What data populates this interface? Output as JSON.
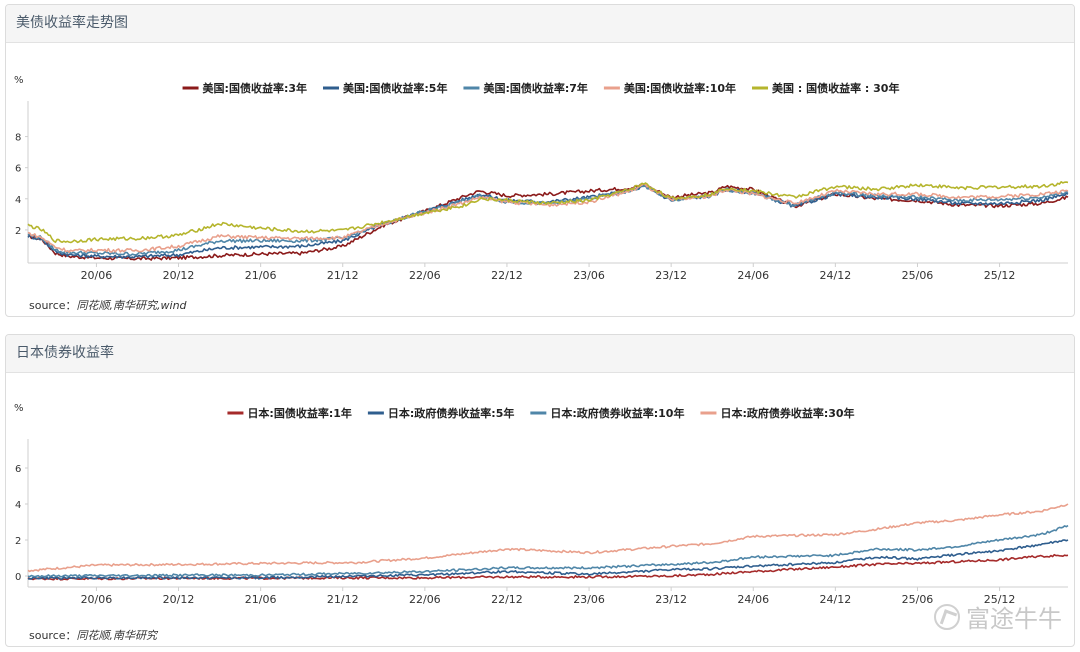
{
  "panels": [
    {
      "title": "美债收益率走势图",
      "source_label": "source：",
      "source_text": "同花顺,南华研究,wind"
    },
    {
      "title": "日本债券收益率",
      "source_label": "source：",
      "source_text": "同花顺,南华研究"
    }
  ],
  "watermark": "富途牛牛",
  "chart_data": [
    {
      "type": "line",
      "title": "",
      "ylabel": "%",
      "xlabel": "",
      "ylim": [
        0,
        9
      ],
      "yticks": [
        2,
        4,
        6,
        8
      ],
      "xlim": [
        "2020-01",
        "2026-05"
      ],
      "xticks": [
        "20/06",
        "20/12",
        "21/06",
        "21/12",
        "22/06",
        "22/12",
        "23/06",
        "23/12",
        "24/06",
        "24/12",
        "25/06",
        "25/12"
      ],
      "legend_position": "top",
      "series": [
        {
          "name": "美国:国债收益率:3年",
          "color": "#8b1a1a",
          "x": [
            "2020-01",
            "2020-02",
            "2020-03",
            "2020-04",
            "2020-06",
            "2020-09",
            "2020-12",
            "2021-03",
            "2021-06",
            "2021-09",
            "2021-12",
            "2022-03",
            "2022-06",
            "2022-09",
            "2022-10",
            "2022-12",
            "2023-03",
            "2023-06",
            "2023-09",
            "2023-10",
            "2023-12",
            "2024-03",
            "2024-04",
            "2024-06",
            "2024-09",
            "2024-12",
            "2025-03",
            "2025-06",
            "2025-09",
            "2025-12",
            "2026-03",
            "2026-05"
          ],
          "values": [
            1.6,
            1.4,
            0.5,
            0.3,
            0.2,
            0.15,
            0.2,
            0.35,
            0.45,
            0.5,
            0.95,
            2.3,
            3.2,
            4.2,
            4.5,
            4.2,
            4.3,
            4.5,
            4.7,
            4.9,
            4.1,
            4.4,
            4.8,
            4.6,
            3.5,
            4.3,
            4.0,
            3.9,
            3.6,
            3.55,
            3.7,
            4.1
          ]
        },
        {
          "name": "美国:国债收益率:5年",
          "color": "#2f5e8e",
          "x": [
            "2020-01",
            "2020-02",
            "2020-03",
            "2020-04",
            "2020-06",
            "2020-09",
            "2020-12",
            "2021-03",
            "2021-06",
            "2021-09",
            "2021-12",
            "2022-03",
            "2022-06",
            "2022-09",
            "2022-10",
            "2022-12",
            "2023-03",
            "2023-06",
            "2023-09",
            "2023-10",
            "2023-12",
            "2024-03",
            "2024-04",
            "2024-06",
            "2024-09",
            "2024-12",
            "2025-03",
            "2025-06",
            "2025-09",
            "2025-12",
            "2026-03",
            "2026-05"
          ],
          "values": [
            1.6,
            1.4,
            0.6,
            0.4,
            0.3,
            0.28,
            0.4,
            0.85,
            0.9,
            0.95,
            1.3,
            2.4,
            3.2,
            4.0,
            4.3,
            3.9,
            3.8,
            4.1,
            4.5,
            4.8,
            3.9,
            4.2,
            4.6,
            4.4,
            3.5,
            4.3,
            4.1,
            4.0,
            3.7,
            3.7,
            3.9,
            4.3
          ]
        },
        {
          "name": "美国:国债收益率:7年",
          "color": "#4f86a8",
          "x": [
            "2020-01",
            "2020-02",
            "2020-03",
            "2020-04",
            "2020-06",
            "2020-09",
            "2020-12",
            "2021-03",
            "2021-06",
            "2021-09",
            "2021-12",
            "2022-03",
            "2022-06",
            "2022-09",
            "2022-10",
            "2022-12",
            "2023-03",
            "2023-06",
            "2023-09",
            "2023-10",
            "2023-12",
            "2024-03",
            "2024-04",
            "2024-06",
            "2024-09",
            "2024-12",
            "2025-03",
            "2025-06",
            "2025-09",
            "2025-12",
            "2026-03",
            "2026-05"
          ],
          "values": [
            1.7,
            1.5,
            0.7,
            0.55,
            0.5,
            0.45,
            0.7,
            1.3,
            1.3,
            1.3,
            1.45,
            2.4,
            3.2,
            3.9,
            4.2,
            3.8,
            3.7,
            4.0,
            4.5,
            4.85,
            3.9,
            4.2,
            4.6,
            4.35,
            3.6,
            4.4,
            4.2,
            4.1,
            3.9,
            3.95,
            4.1,
            4.4
          ]
        },
        {
          "name": "美国:国债收益率:10年",
          "color": "#e9a08c",
          "x": [
            "2020-01",
            "2020-02",
            "2020-03",
            "2020-04",
            "2020-06",
            "2020-09",
            "2020-12",
            "2021-03",
            "2021-06",
            "2021-09",
            "2021-12",
            "2022-03",
            "2022-06",
            "2022-09",
            "2022-10",
            "2022-12",
            "2023-03",
            "2023-06",
            "2023-09",
            "2023-10",
            "2023-12",
            "2024-03",
            "2024-04",
            "2024-06",
            "2024-09",
            "2024-12",
            "2025-03",
            "2025-06",
            "2025-09",
            "2025-12",
            "2026-03",
            "2026-05"
          ],
          "values": [
            1.8,
            1.5,
            0.9,
            0.65,
            0.7,
            0.68,
            0.95,
            1.6,
            1.5,
            1.45,
            1.5,
            2.4,
            3.1,
            3.8,
            4.1,
            3.8,
            3.6,
            3.8,
            4.5,
            4.9,
            3.9,
            4.2,
            4.6,
            4.3,
            3.7,
            4.5,
            4.3,
            4.3,
            4.1,
            4.15,
            4.3,
            4.5
          ]
        },
        {
          "name": "美国 : 国债收益率 : 30年",
          "color": "#b5b52d",
          "x": [
            "2020-01",
            "2020-02",
            "2020-03",
            "2020-04",
            "2020-06",
            "2020-09",
            "2020-12",
            "2021-03",
            "2021-06",
            "2021-09",
            "2021-12",
            "2022-03",
            "2022-06",
            "2022-09",
            "2022-10",
            "2022-12",
            "2023-03",
            "2023-06",
            "2023-09",
            "2023-10",
            "2023-12",
            "2024-03",
            "2024-04",
            "2024-06",
            "2024-09",
            "2024-12",
            "2025-03",
            "2025-06",
            "2025-09",
            "2025-12",
            "2026-03",
            "2026-05"
          ],
          "values": [
            2.3,
            2.0,
            1.3,
            1.25,
            1.4,
            1.45,
            1.65,
            2.4,
            2.1,
            1.9,
            1.95,
            2.5,
            3.1,
            3.6,
            4.0,
            3.9,
            3.7,
            3.9,
            4.6,
            5.0,
            4.0,
            4.3,
            4.7,
            4.5,
            4.1,
            4.8,
            4.6,
            4.9,
            4.7,
            4.75,
            4.8,
            5.05
          ]
        }
      ]
    },
    {
      "type": "line",
      "title": "",
      "ylabel": "%",
      "xlabel": "",
      "ylim": [
        -0.5,
        6.5
      ],
      "yticks": [
        0,
        2,
        4,
        6
      ],
      "xlim": [
        "2020-01",
        "2026-05"
      ],
      "xticks": [
        "20/06",
        "20/12",
        "21/06",
        "21/12",
        "22/06",
        "22/12",
        "23/06",
        "23/12",
        "24/06",
        "24/12",
        "25/06",
        "25/12"
      ],
      "legend_position": "top",
      "series": [
        {
          "name": "日本:国债收益率:1年",
          "color": "#a52a2a",
          "x": [
            "2020-01",
            "2020-06",
            "2021-01",
            "2021-06",
            "2022-01",
            "2022-06",
            "2022-12",
            "2023-06",
            "2023-12",
            "2024-03",
            "2024-06",
            "2024-12",
            "2025-03",
            "2025-06",
            "2025-09",
            "2025-12",
            "2026-03",
            "2026-05"
          ],
          "values": [
            -0.15,
            -0.15,
            -0.12,
            -0.12,
            -0.1,
            -0.1,
            -0.05,
            -0.05,
            0.0,
            0.1,
            0.25,
            0.5,
            0.65,
            0.7,
            0.8,
            0.9,
            1.1,
            1.15
          ]
        },
        {
          "name": "日本:政府债券收益率:5年",
          "color": "#2f5e8e",
          "x": [
            "2020-01",
            "2020-06",
            "2021-01",
            "2021-06",
            "2022-01",
            "2022-06",
            "2022-12",
            "2023-06",
            "2023-12",
            "2024-03",
            "2024-06",
            "2024-12",
            "2025-03",
            "2025-06",
            "2025-09",
            "2025-12",
            "2026-03",
            "2026-05"
          ],
          "values": [
            -0.12,
            -0.1,
            -0.1,
            -0.1,
            0.0,
            0.05,
            0.25,
            0.1,
            0.35,
            0.4,
            0.55,
            0.75,
            1.05,
            0.95,
            1.2,
            1.4,
            1.75,
            2.0
          ]
        },
        {
          "name": "日本:政府债券收益率:10年",
          "color": "#4f86a8",
          "x": [
            "2020-01",
            "2020-06",
            "2021-01",
            "2021-06",
            "2022-01",
            "2022-06",
            "2022-12",
            "2023-06",
            "2023-12",
            "2024-03",
            "2024-06",
            "2024-12",
            "2025-03",
            "2025-06",
            "2025-09",
            "2025-12",
            "2026-03",
            "2026-05"
          ],
          "values": [
            0.0,
            0.02,
            0.05,
            0.05,
            0.15,
            0.25,
            0.45,
            0.45,
            0.65,
            0.75,
            1.05,
            1.15,
            1.5,
            1.45,
            1.65,
            2.0,
            2.3,
            2.8
          ]
        },
        {
          "name": "日本:政府债券收益率:30年",
          "color": "#e9a08c",
          "x": [
            "2020-01",
            "2020-06",
            "2021-01",
            "2021-06",
            "2022-01",
            "2022-06",
            "2022-12",
            "2023-06",
            "2023-12",
            "2024-03",
            "2024-06",
            "2024-12",
            "2025-03",
            "2025-06",
            "2025-09",
            "2025-12",
            "2026-03",
            "2026-05"
          ],
          "values": [
            0.3,
            0.6,
            0.65,
            0.7,
            0.75,
            1.0,
            1.5,
            1.3,
            1.65,
            1.8,
            2.2,
            2.3,
            2.6,
            2.95,
            3.1,
            3.4,
            3.6,
            4.0
          ]
        }
      ]
    }
  ]
}
